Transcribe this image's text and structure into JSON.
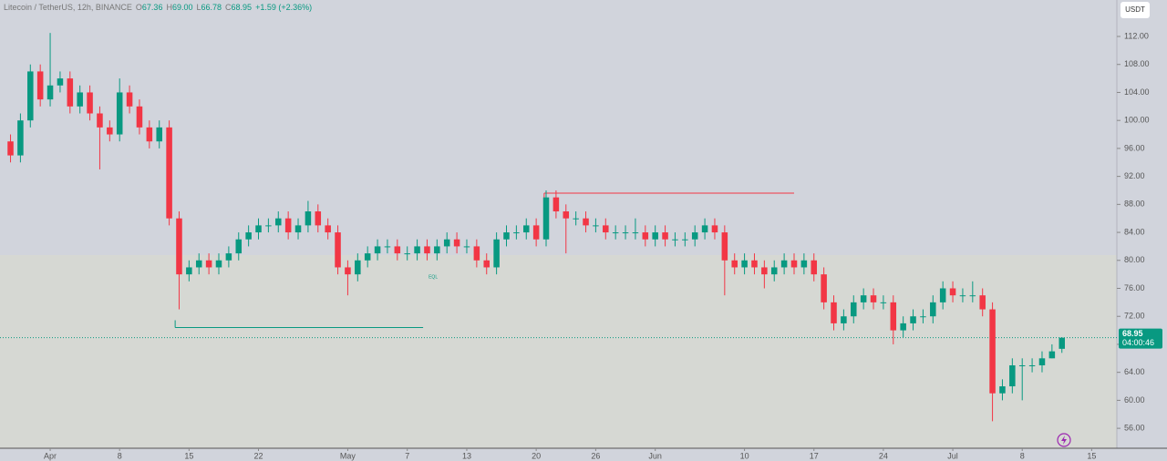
{
  "chart_data": {
    "type": "candlestick",
    "header": {
      "symbol": "Litecoin / TetherUS, 12h, BINANCE",
      "quote": [
        {
          "key": "O",
          "value": "67.36"
        },
        {
          "key": "H",
          "value": "69.00"
        },
        {
          "key": "L",
          "value": "66.78"
        },
        {
          "key": "C",
          "value": "68.95"
        }
      ],
      "change": "+1.59 (+2.36%)"
    },
    "currency": "USDT",
    "last_price_label": "68.95",
    "countdown": "04:00:46",
    "annotation": "EQL",
    "up_color": "#089981",
    "down_color": "#f23645",
    "x": [
      -4,
      -3,
      -2,
      -1,
      0,
      1,
      2,
      3,
      4,
      5,
      6,
      7,
      8,
      9,
      10,
      11,
      12,
      13,
      14,
      15,
      16,
      17,
      18,
      19,
      20,
      21,
      22,
      23,
      24,
      25,
      26,
      27,
      28,
      29,
      30,
      31,
      32,
      33,
      34,
      35,
      36,
      37,
      38,
      39,
      40,
      41,
      42,
      43,
      44,
      45,
      46,
      47,
      48,
      49,
      50,
      51,
      52,
      53,
      54,
      55,
      56,
      57,
      58,
      59,
      60,
      61,
      62,
      63,
      64,
      65,
      66,
      67,
      68,
      69,
      70,
      71,
      72,
      73,
      74,
      75,
      76,
      77,
      78,
      79,
      80,
      81,
      82,
      83,
      84,
      85,
      86,
      87,
      88,
      89,
      90,
      91,
      92,
      93,
      94,
      95,
      96,
      97,
      98,
      99,
      100,
      101,
      102
    ],
    "open": [
      97,
      95,
      100,
      107,
      103,
      105,
      106,
      102,
      104,
      101,
      99,
      98,
      104,
      102,
      99,
      97,
      99,
      86,
      78,
      79,
      80,
      79,
      80,
      81,
      83,
      84,
      85,
      85,
      86,
      84,
      85,
      87,
      85,
      84,
      79,
      78,
      80,
      81,
      82,
      82,
      81,
      81,
      82,
      81,
      82,
      83,
      82,
      82,
      80,
      79,
      83,
      84,
      84,
      85,
      83,
      89,
      87,
      86,
      86,
      85,
      85,
      84,
      84,
      84,
      84,
      83,
      84,
      83,
      83,
      83,
      84,
      85,
      84,
      80,
      79,
      80,
      79,
      78,
      79,
      80,
      79,
      80,
      78,
      74,
      71,
      72,
      74,
      75,
      74,
      74,
      70,
      71,
      72,
      72,
      74,
      76,
      75,
      75,
      75,
      73,
      61,
      62,
      65,
      65,
      65,
      66,
      67.36
    ],
    "high": [
      98,
      101,
      108,
      108,
      112.5,
      107,
      107,
      105,
      105,
      102,
      100,
      106,
      105,
      103,
      100,
      100,
      100,
      87,
      80,
      81,
      81,
      81,
      82,
      84,
      85,
      86,
      86,
      87,
      87,
      86,
      88.5,
      88,
      86,
      85,
      80,
      81,
      82,
      83,
      83,
      83,
      82,
      83,
      83,
      83,
      84,
      84,
      83,
      83,
      81,
      84,
      85,
      85,
      86,
      86,
      90,
      90,
      88,
      87,
      87,
      86,
      86,
      85,
      85,
      86,
      85,
      85,
      85,
      84,
      84,
      85,
      86,
      86,
      85,
      81,
      81,
      81,
      80,
      80,
      81,
      81,
      81,
      81,
      79,
      75,
      73,
      75,
      76,
      76,
      75,
      75,
      72,
      73,
      73,
      75,
      77,
      77,
      76,
      77,
      76,
      74,
      63,
      66,
      66,
      66,
      67,
      68,
      69
    ],
    "low": [
      94,
      94,
      99,
      102,
      102,
      104,
      101,
      101,
      100,
      93,
      97,
      97,
      101,
      98,
      96,
      96,
      85,
      73,
      77,
      78,
      78,
      78,
      79,
      80,
      82,
      83,
      84,
      84,
      83,
      83,
      84,
      84,
      83,
      78,
      75,
      77,
      79,
      80,
      81,
      80,
      80,
      80,
      80,
      80,
      81,
      81,
      81,
      79,
      78,
      78,
      82,
      83,
      83,
      82,
      82,
      86,
      81,
      85,
      84,
      84,
      83,
      83,
      83,
      83,
      82,
      82,
      82,
      82,
      82,
      82,
      83,
      83,
      75,
      78,
      78,
      78,
      76,
      77,
      78,
      78,
      78,
      77,
      73,
      70,
      70,
      71,
      73,
      73,
      73,
      68,
      69,
      70,
      71,
      71,
      73,
      74,
      74,
      74,
      72,
      57,
      60,
      61,
      60,
      64,
      64,
      66,
      66.78
    ],
    "close": [
      95,
      100,
      107,
      103,
      105,
      106,
      102,
      104,
      101,
      99,
      98,
      104,
      102,
      99,
      97,
      99,
      86,
      78,
      79,
      80,
      79,
      80,
      81,
      83,
      84,
      85,
      85,
      86,
      84,
      85,
      87,
      85,
      84,
      79,
      78,
      80,
      81,
      82,
      82,
      81,
      81,
      82,
      81,
      82,
      83,
      82,
      82,
      80,
      79,
      83,
      84,
      84,
      85,
      83,
      89,
      87,
      86,
      86,
      85,
      85,
      84,
      84,
      84,
      84,
      83,
      84,
      83,
      83,
      83,
      84,
      85,
      84,
      80,
      79,
      80,
      79,
      78,
      79,
      80,
      79,
      80,
      78,
      74,
      71,
      72,
      74,
      75,
      74,
      74,
      70,
      71,
      72,
      72,
      74,
      76,
      75,
      75,
      75,
      73,
      61,
      62,
      65,
      65,
      65,
      66,
      67,
      68.95
    ],
    "levels": [
      {
        "value": 89.6,
        "from": 49.8,
        "to": 75,
        "color": "#f23645"
      },
      {
        "value": 70.4,
        "from": 12.6,
        "to": 37.6,
        "color": "#089981"
      }
    ],
    "zone_split": 80.75,
    "xlim": [
      -5.06,
      107.54
    ],
    "xticks": [
      {
        "value": 0,
        "label": "Apr"
      },
      {
        "value": 7,
        "label": "8"
      },
      {
        "value": 14,
        "label": "15"
      },
      {
        "value": 21,
        "label": "22"
      },
      {
        "value": 30,
        "label": "May"
      },
      {
        "value": 36,
        "label": "7"
      },
      {
        "value": 42,
        "label": "13"
      },
      {
        "value": 49,
        "label": "20"
      },
      {
        "value": 55,
        "label": "26"
      },
      {
        "value": 61,
        "label": "Jun"
      },
      {
        "value": 70,
        "label": "10"
      },
      {
        "value": 77,
        "label": "17"
      },
      {
        "value": 84,
        "label": "24"
      },
      {
        "value": 91,
        "label": "Jul"
      },
      {
        "value": 98,
        "label": "8"
      },
      {
        "value": 105,
        "label": "15"
      }
    ],
    "ylim": [
      53.15,
      117.21
    ],
    "yticks": [
      {
        "value": 56,
        "label": "56.00"
      },
      {
        "value": 60,
        "label": "60.00"
      },
      {
        "value": 64,
        "label": "64.00"
      },
      {
        "value": 68,
        "label": "68.00"
      },
      {
        "value": 72,
        "label": "72.00"
      },
      {
        "value": 76,
        "label": "76.00"
      },
      {
        "value": 80,
        "label": "80.00"
      },
      {
        "value": 84,
        "label": "84.00"
      },
      {
        "value": 88,
        "label": "88.00"
      },
      {
        "value": 92,
        "label": "92.00"
      },
      {
        "value": 96,
        "label": "96.00"
      },
      {
        "value": 100,
        "label": "100.00"
      },
      {
        "value": 104,
        "label": "104.00"
      },
      {
        "value": 108,
        "label": "108.00"
      },
      {
        "value": 112,
        "label": "112.00"
      }
    ]
  }
}
